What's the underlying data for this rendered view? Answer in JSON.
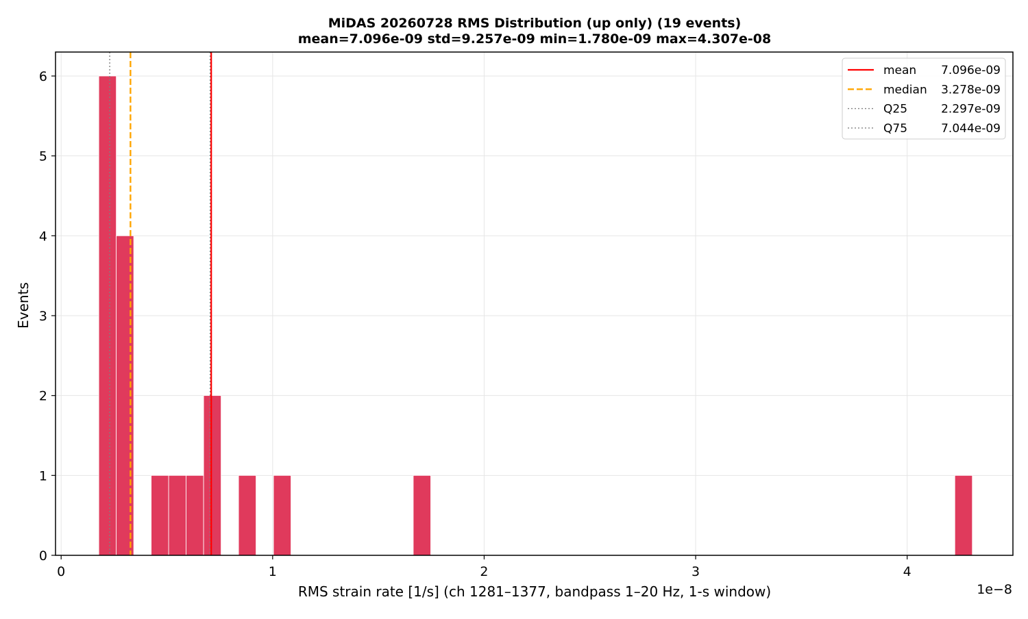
{
  "chart_data": {
    "type": "bar",
    "title": "MiDAS 20260728  RMS Distribution  (up only)  (19 events)",
    "subtitle": "mean=7.096e-09  std=9.257e-09  min=1.780e-09  max=4.307e-08",
    "xlabel": "RMS strain rate [1/s]  (ch 1281–1377, bandpass 1–20 Hz, 1-s window)",
    "ylabel": "Events",
    "x_offset_label": "1e−8",
    "x_scale": 1e-08,
    "xlim": [
      -0.0266,
      4.5
    ],
    "ylim": [
      0,
      6.3
    ],
    "x_ticks": [
      0,
      1,
      2,
      3,
      4
    ],
    "x_tick_labels": [
      "0",
      "1",
      "2",
      "3",
      "4"
    ],
    "y_ticks": [
      0,
      1,
      2,
      3,
      4,
      5,
      6
    ],
    "y_tick_labels": [
      "0",
      "1",
      "2",
      "3",
      "4",
      "5",
      "6"
    ],
    "grid": true,
    "bar_color": "#e03a5c",
    "bin_width": 0.0826,
    "bins": [
      {
        "left": 0.178,
        "count": 6
      },
      {
        "left": 0.2606,
        "count": 4
      },
      {
        "left": 0.4258,
        "count": 1
      },
      {
        "left": 0.5084,
        "count": 1
      },
      {
        "left": 0.591,
        "count": 1
      },
      {
        "left": 0.6736,
        "count": 2
      },
      {
        "left": 0.8388,
        "count": 1
      },
      {
        "left": 1.004,
        "count": 1
      },
      {
        "left": 1.6648,
        "count": 1
      },
      {
        "left": 4.2254,
        "count": 1
      }
    ],
    "reference_lines": [
      {
        "name": "mean",
        "value": 0.7096,
        "color": "#ff0000",
        "style": "solid",
        "legend_label": "mean",
        "legend_value": "7.096e-09"
      },
      {
        "name": "median",
        "value": 0.3278,
        "color": "#ffa500",
        "style": "dashed",
        "legend_label": "median",
        "legend_value": "3.278e-09"
      },
      {
        "name": "Q25",
        "value": 0.2297,
        "color": "#808080",
        "style": "dotted",
        "legend_label": "Q25",
        "legend_value": "2.297e-09"
      },
      {
        "name": "Q75",
        "value": 0.7044,
        "color": "#808080",
        "style": "dotted",
        "legend_label": "Q75",
        "legend_value": "7.044e-09"
      }
    ],
    "legend_position": "top-right"
  }
}
